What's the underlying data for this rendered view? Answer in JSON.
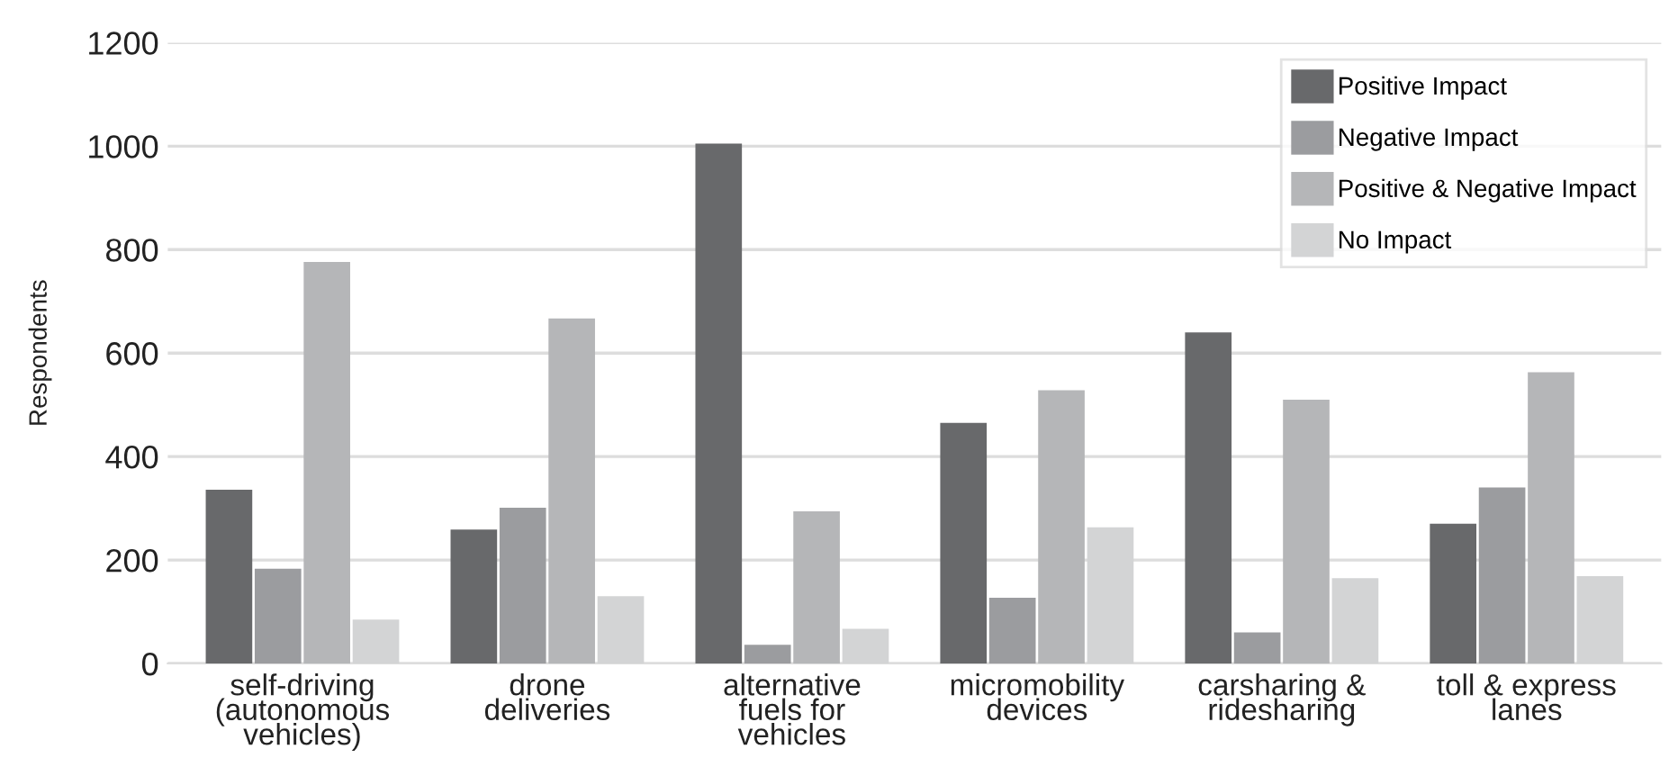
{
  "chart_data": {
    "type": "bar",
    "ylabel": "Respondents",
    "categories": [
      "self-driving\n(autonomous\nvehicles)",
      "drone\ndeliveries",
      "alternative\nfuels for\nvehicles",
      "micromobility\ndevices",
      "carsharing &\nridesharing",
      "toll & express\nlanes"
    ],
    "series": [
      {
        "name": "Positive Impact",
        "color": "#68696b",
        "values": [
          336,
          259,
          1005,
          465,
          640,
          270
        ]
      },
      {
        "name": "Negative Impact",
        "color": "#9b9c9f",
        "values": [
          183,
          301,
          36,
          127,
          60,
          340
        ]
      },
      {
        "name": "Positive & Negative Impact",
        "color": "#b5b6b8",
        "values": [
          776,
          667,
          294,
          528,
          510,
          563
        ]
      },
      {
        "name": "No Impact",
        "color": "#d3d4d5",
        "values": [
          85,
          130,
          67,
          263,
          165,
          169
        ]
      }
    ],
    "ylim": [
      0,
      1200
    ],
    "yticks": [
      0,
      200,
      400,
      600,
      800,
      1000,
      1200
    ],
    "grid": "y",
    "legend": "top right"
  }
}
